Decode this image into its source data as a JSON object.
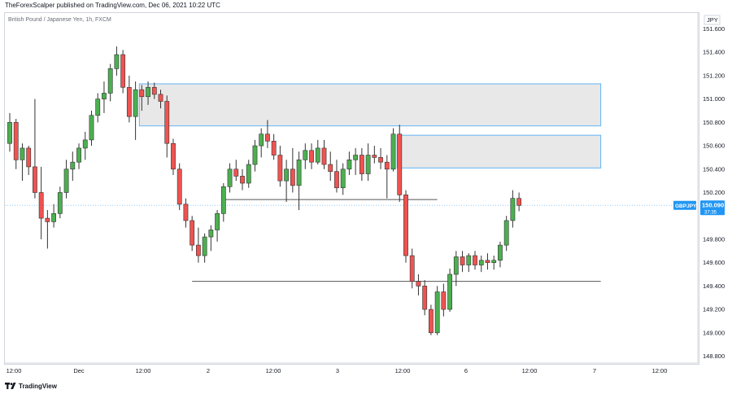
{
  "header": {
    "publisher_line": "TheForexScalper published on TradingView.com, Dec 06, 2021 10:22 UTC"
  },
  "footer": {
    "brand": "TradingView"
  },
  "chart_data": {
    "type": "candlestick",
    "symbol_line": "British Pound / Japanese Yen, 1h, FXCM",
    "currency_label": "JPY",
    "ticker": "GBPJPY",
    "last_price": "150.090",
    "countdown": "37:35",
    "ylim": [
      148.75,
      151.72
    ],
    "y_ticks": [
      "151.600",
      "151.400",
      "151.200",
      "151.000",
      "150.800",
      "150.600",
      "150.400",
      "150.200",
      "149.800",
      "149.600",
      "149.400",
      "149.200",
      "149.000",
      "148.800"
    ],
    "x_ticks": [
      "12:00",
      "Dec",
      "12:00",
      "2",
      "12:00",
      "3",
      "12:00",
      "6",
      "12:00",
      "7",
      "12:00"
    ],
    "colors": {
      "up": "#26a69a",
      "up_body": "#4caf50",
      "down": "#ef5350",
      "zone_fill": "#e8e8e8",
      "zone_border": "#64b5f6",
      "price_line": "#90caf9",
      "level_line": "#555555"
    },
    "candles": [
      [
        150.62,
        150.88,
        150.55,
        150.8
      ],
      [
        150.8,
        150.83,
        150.4,
        150.48
      ],
      [
        150.48,
        150.62,
        150.3,
        150.58
      ],
      [
        150.58,
        150.6,
        150.35,
        150.42
      ],
      [
        150.42,
        151.0,
        150.15,
        150.2
      ],
      [
        150.2,
        150.42,
        149.8,
        149.98
      ],
      [
        149.98,
        150.05,
        149.72,
        149.95
      ],
      [
        149.95,
        150.1,
        149.9,
        150.02
      ],
      [
        150.02,
        150.25,
        149.98,
        150.2
      ],
      [
        150.2,
        150.48,
        150.15,
        150.4
      ],
      [
        150.4,
        150.55,
        150.3,
        150.46
      ],
      [
        150.46,
        150.62,
        150.4,
        150.58
      ],
      [
        150.58,
        150.72,
        150.48,
        150.65
      ],
      [
        150.65,
        150.9,
        150.6,
        150.86
      ],
      [
        150.86,
        151.05,
        150.8,
        151.0
      ],
      [
        151.0,
        151.15,
        150.88,
        151.05
      ],
      [
        151.05,
        151.3,
        150.98,
        151.26
      ],
      [
        151.26,
        151.45,
        151.2,
        151.38
      ],
      [
        151.38,
        151.42,
        151.05,
        151.1
      ],
      [
        151.1,
        151.2,
        150.8,
        150.85
      ],
      [
        150.85,
        151.15,
        150.65,
        151.08
      ],
      [
        151.08,
        151.12,
        150.9,
        151.02
      ],
      [
        151.02,
        151.15,
        150.95,
        151.1
      ],
      [
        151.1,
        151.14,
        151.0,
        151.04
      ],
      [
        151.04,
        151.08,
        150.92,
        150.98
      ],
      [
        150.98,
        151.03,
        150.5,
        150.62
      ],
      [
        150.62,
        150.66,
        150.35,
        150.4
      ],
      [
        150.4,
        150.45,
        150.05,
        150.1
      ],
      [
        150.1,
        150.15,
        149.9,
        149.96
      ],
      [
        149.96,
        150.0,
        149.7,
        149.75
      ],
      [
        149.75,
        149.9,
        149.6,
        149.66
      ],
      [
        149.66,
        149.85,
        149.6,
        149.82
      ],
      [
        149.82,
        149.92,
        149.7,
        149.88
      ],
      [
        149.88,
        150.05,
        149.78,
        150.02
      ],
      [
        150.02,
        150.28,
        149.95,
        150.25
      ],
      [
        150.25,
        150.45,
        150.2,
        150.4
      ],
      [
        150.4,
        150.48,
        150.3,
        150.34
      ],
      [
        150.34,
        150.4,
        150.22,
        150.28
      ],
      [
        150.28,
        150.48,
        150.24,
        150.44
      ],
      [
        150.44,
        150.65,
        150.38,
        150.6
      ],
      [
        150.6,
        150.75,
        150.5,
        150.7
      ],
      [
        150.7,
        150.82,
        150.58,
        150.64
      ],
      [
        150.64,
        150.7,
        150.48,
        150.52
      ],
      [
        150.52,
        150.6,
        150.25,
        150.3
      ],
      [
        150.3,
        150.48,
        150.12,
        150.4
      ],
      [
        150.4,
        150.58,
        150.2,
        150.26
      ],
      [
        150.26,
        150.55,
        150.05,
        150.48
      ],
      [
        150.48,
        150.62,
        150.4,
        150.56
      ],
      [
        150.56,
        150.62,
        150.4,
        150.46
      ],
      [
        150.46,
        150.65,
        150.44,
        150.58
      ],
      [
        150.58,
        150.65,
        150.4,
        150.44
      ],
      [
        150.44,
        150.55,
        150.3,
        150.38
      ],
      [
        150.38,
        150.48,
        150.2,
        150.24
      ],
      [
        150.24,
        150.45,
        150.18,
        150.4
      ],
      [
        150.4,
        150.55,
        150.35,
        150.48
      ],
      [
        150.48,
        150.58,
        150.35,
        150.52
      ],
      [
        150.52,
        150.58,
        150.3,
        150.36
      ],
      [
        150.36,
        150.62,
        150.3,
        150.52
      ],
      [
        150.52,
        150.6,
        150.45,
        150.5
      ],
      [
        150.5,
        150.58,
        150.4,
        150.46
      ],
      [
        150.46,
        150.52,
        150.15,
        150.4
      ],
      [
        150.4,
        150.75,
        150.38,
        150.7
      ],
      [
        150.7,
        150.78,
        150.12,
        150.18
      ],
      [
        150.18,
        150.22,
        149.6,
        149.66
      ],
      [
        149.66,
        149.72,
        149.38,
        149.44
      ],
      [
        149.44,
        149.5,
        149.32,
        149.4
      ],
      [
        149.4,
        149.45,
        149.15,
        149.2
      ],
      [
        149.2,
        149.24,
        148.98,
        149.0
      ],
      [
        149.0,
        149.4,
        148.98,
        149.35
      ],
      [
        149.35,
        149.42,
        149.14,
        149.2
      ],
      [
        149.2,
        149.55,
        149.18,
        149.5
      ],
      [
        149.5,
        149.7,
        149.4,
        149.65
      ],
      [
        149.65,
        149.7,
        149.52,
        149.58
      ],
      [
        149.58,
        149.68,
        149.52,
        149.66
      ],
      [
        149.66,
        149.7,
        149.54,
        149.58
      ],
      [
        149.58,
        149.66,
        149.52,
        149.62
      ],
      [
        149.62,
        149.68,
        149.54,
        149.6
      ],
      [
        149.6,
        149.66,
        149.54,
        149.62
      ],
      [
        149.62,
        149.78,
        149.56,
        149.75
      ],
      [
        149.75,
        150.0,
        149.7,
        149.96
      ],
      [
        149.96,
        150.22,
        149.9,
        150.15
      ],
      [
        150.15,
        150.2,
        150.04,
        150.09
      ]
    ],
    "zones": [
      {
        "from_bar": 21,
        "to_bar": 94,
        "low": 150.77,
        "high": 151.13
      },
      {
        "from_bar": 62,
        "to_bar": 94,
        "low": 150.41,
        "high": 150.69
      }
    ],
    "levels": [
      {
        "from_bar": 34,
        "to_bar": 68,
        "price": 150.14
      },
      {
        "from_bar": 29,
        "to_bar": 94,
        "price": 149.44
      }
    ]
  }
}
